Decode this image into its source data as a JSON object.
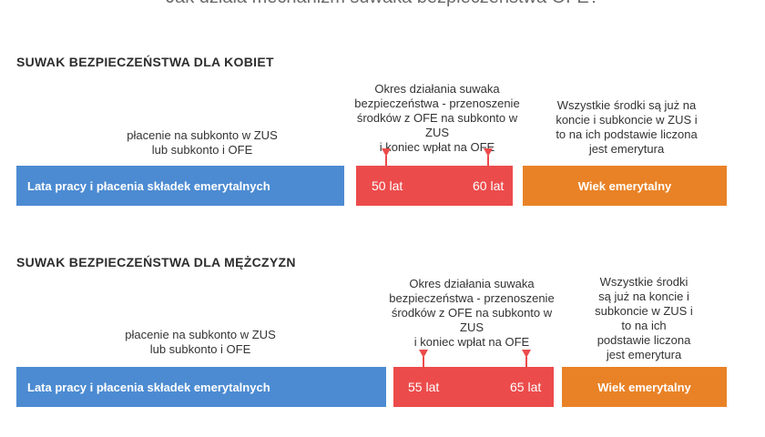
{
  "title": "Jak działa mechanizm suwaka bezpieczeństwa OFE?",
  "sections": {
    "women": {
      "heading": "SUWAK BEZPIECZEŃSTWA DLA KOBIET",
      "payment_note": "płacenie na subkonto w ZUS\nlub subkonto i OFE",
      "slider_note": "Okres działania suwaka\nbezpieczeństwa - przenoszenie\nśrodków z OFE na subkonto w ZUS\ni koniec wpłat na OFE",
      "funds_note": "Wszystkie środki są już na\nkoncie i subkoncie w ZUS i\nto na ich podstawie liczona\njest emerytura",
      "work_bar": "Lata pracy i płacenia składek emerytalnych",
      "age_start": "50 lat",
      "age_end": "60 lat",
      "retirement_bar": "Wiek emerytalny"
    },
    "men": {
      "heading": "SUWAK BEZPIECZEŃSTWA DLA MĘŻCZYZN",
      "payment_note": "płacenie na subkonto w ZUS\nlub subkonto i OFE",
      "slider_note": "Okres działania suwaka\nbezpieczeństwa - przenoszenie\nśrodków z OFE na subkonto w ZUS\ni koniec wpłat na OFE",
      "funds_note": "Wszystkie środki\nsą już na koncie i\nsubkoncie w ZUS i\nto na ich\npodstawie liczona\njest emerytura",
      "work_bar": "Lata pracy i płacenia składek emerytalnych",
      "age_start": "55 lat",
      "age_end": "65 lat",
      "retirement_bar": "Wiek emerytalny"
    }
  },
  "colors": {
    "work": "#4c8bd2",
    "slider": "#ec4b4b",
    "retirement": "#e98226"
  }
}
